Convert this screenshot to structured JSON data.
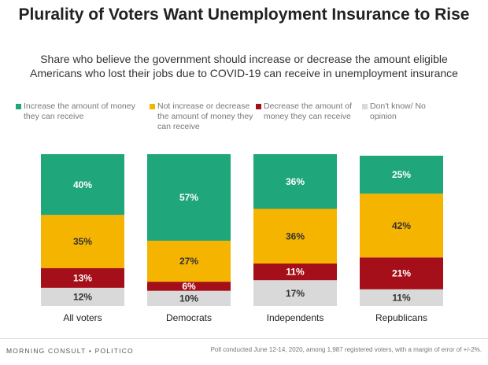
{
  "chart_data": {
    "type": "stacked_bar",
    "title": "Plurality of Voters Want Unemployment Insurance to Rise",
    "subtitle": "Share who believe the government should increase or decrease the amount eligible Americans who lost their jobs due to COVID-19 can receive in unemployment insurance",
    "categories": [
      "All voters",
      "Democrats",
      "Independents",
      "Republicans"
    ],
    "series": [
      {
        "name": "Increase the amount of money they can receive",
        "color": "#1fa67a",
        "values": [
          40,
          57,
          36,
          25
        ],
        "value_labels": [
          "40%",
          "57%",
          "36%",
          "25%"
        ]
      },
      {
        "name": "Not increase or decrease the amount of money they can receive",
        "color": "#f5b400",
        "values": [
          35,
          27,
          36,
          42
        ],
        "value_labels": [
          "35%",
          "27%",
          "36%",
          "42%"
        ]
      },
      {
        "name": "Decrease the amount of money they can receive",
        "color": "#a50f1a",
        "values": [
          13,
          6,
          11,
          21
        ],
        "value_labels": [
          "13%",
          "6%",
          "11%",
          "21%"
        ]
      },
      {
        "name": "Don't know/ No opinion",
        "color": "#d9d9d9",
        "values": [
          12,
          10,
          17,
          11
        ],
        "value_labels": [
          "12%",
          "10%",
          "17%",
          "11%"
        ]
      }
    ],
    "ylim": [
      0,
      100
    ],
    "source": "MORNING CONSULT • POLITICO",
    "note": "Poll conducted June 12-14, 2020, among 1,987 registered voters, with a margin of error of +/-2%."
  }
}
